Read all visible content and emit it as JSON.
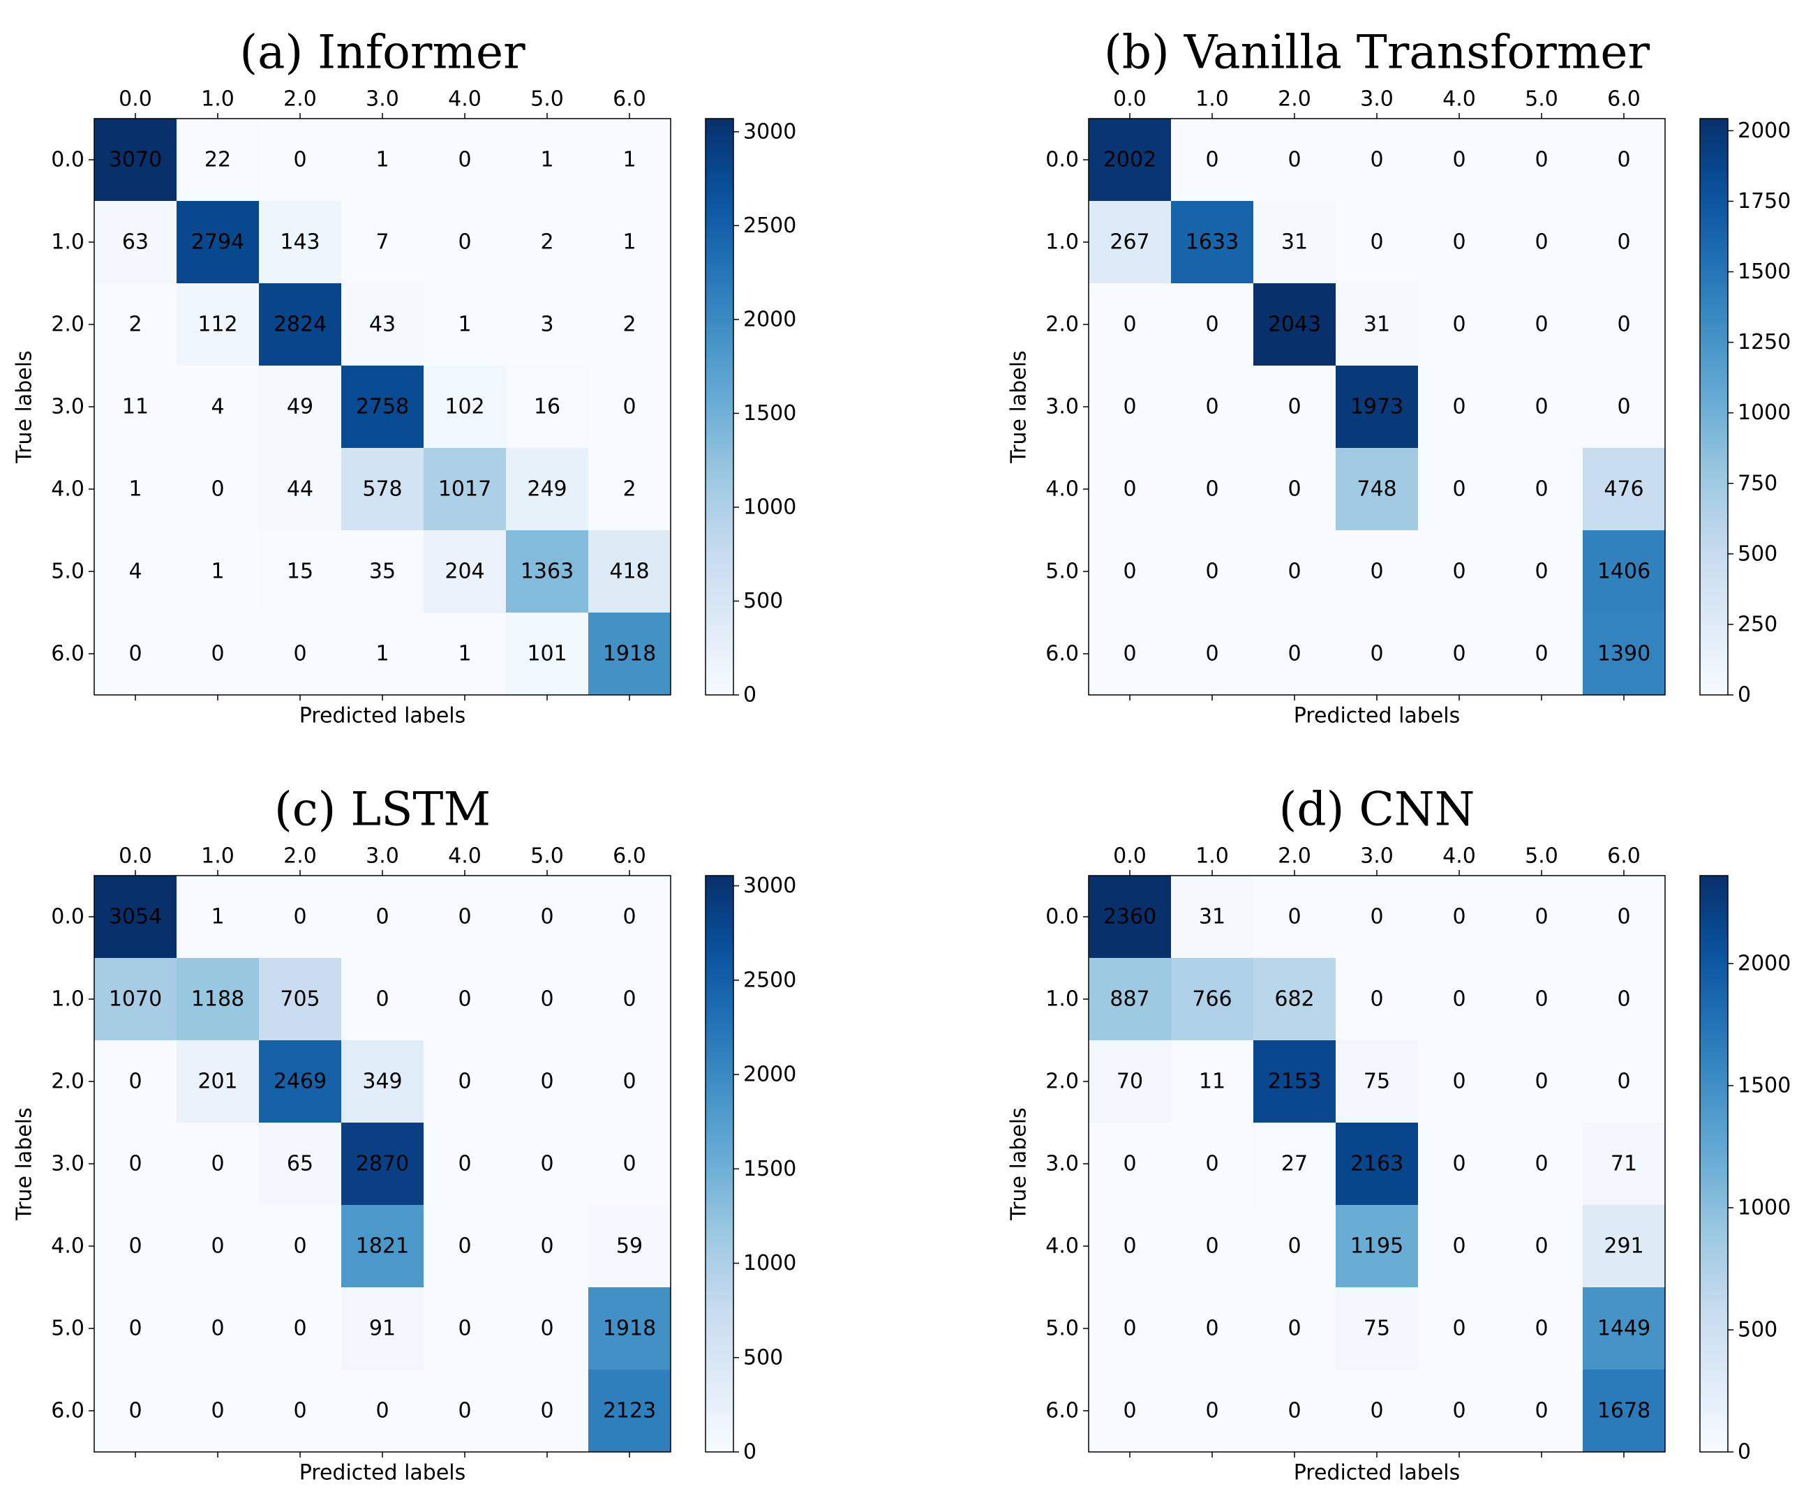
{
  "figure": {
    "title": ""
  },
  "colormap": {
    "name": "Blues",
    "stops": [
      "#f7fbff",
      "#deebf7",
      "#c6dbef",
      "#9ecae1",
      "#6baed6",
      "#4292c6",
      "#2171b5",
      "#08519c",
      "#08306b"
    ]
  },
  "chart_data": [
    {
      "type": "heatmap",
      "title": "(a) Informer",
      "xlabel": "Predicted labels",
      "ylabel": "True labels",
      "labels": [
        "0.0",
        "1.0",
        "2.0",
        "3.0",
        "4.0",
        "5.0",
        "6.0"
      ],
      "matrix": [
        [
          3070,
          22,
          0,
          1,
          0,
          1,
          1
        ],
        [
          63,
          2794,
          143,
          7,
          0,
          2,
          1
        ],
        [
          2,
          112,
          2824,
          43,
          1,
          3,
          2
        ],
        [
          11,
          4,
          49,
          2758,
          102,
          16,
          0
        ],
        [
          1,
          0,
          44,
          578,
          1017,
          249,
          2
        ],
        [
          4,
          1,
          15,
          35,
          204,
          1363,
          418
        ],
        [
          0,
          0,
          0,
          1,
          1,
          101,
          1918
        ]
      ],
      "vmin": 0,
      "vmax": 3070,
      "colorbar_ticks": [
        0,
        500,
        1000,
        1500,
        2000,
        2500,
        3000
      ]
    },
    {
      "type": "heatmap",
      "title": "(b) Vanilla Transformer",
      "xlabel": "Predicted labels",
      "ylabel": "True labels",
      "labels": [
        "0.0",
        "1.0",
        "2.0",
        "3.0",
        "4.0",
        "5.0",
        "6.0"
      ],
      "matrix": [
        [
          2002,
          0,
          0,
          0,
          0,
          0,
          0
        ],
        [
          267,
          1633,
          31,
          0,
          0,
          0,
          0
        ],
        [
          0,
          0,
          2043,
          31,
          0,
          0,
          0
        ],
        [
          0,
          0,
          0,
          1973,
          0,
          0,
          0
        ],
        [
          0,
          0,
          0,
          748,
          0,
          0,
          476
        ],
        [
          0,
          0,
          0,
          0,
          0,
          0,
          1406
        ],
        [
          0,
          0,
          0,
          0,
          0,
          0,
          1390
        ]
      ],
      "vmin": 0,
      "vmax": 2043,
      "colorbar_ticks": [
        0,
        250,
        500,
        750,
        1000,
        1250,
        1500,
        1750,
        2000
      ]
    },
    {
      "type": "heatmap",
      "title": "(c) LSTM",
      "xlabel": "Predicted labels",
      "ylabel": "True labels",
      "labels": [
        "0.0",
        "1.0",
        "2.0",
        "3.0",
        "4.0",
        "5.0",
        "6.0"
      ],
      "matrix": [
        [
          3054,
          1,
          0,
          0,
          0,
          0,
          0
        ],
        [
          1070,
          1188,
          705,
          0,
          0,
          0,
          0
        ],
        [
          0,
          201,
          2469,
          349,
          0,
          0,
          0
        ],
        [
          0,
          0,
          65,
          2870,
          0,
          0,
          0
        ],
        [
          0,
          0,
          0,
          1821,
          0,
          0,
          59
        ],
        [
          0,
          0,
          0,
          91,
          0,
          0,
          1918
        ],
        [
          0,
          0,
          0,
          0,
          0,
          0,
          2123
        ]
      ],
      "vmin": 0,
      "vmax": 3054,
      "colorbar_ticks": [
        0,
        500,
        1000,
        1500,
        2000,
        2500,
        3000
      ]
    },
    {
      "type": "heatmap",
      "title": "(d) CNN",
      "xlabel": "Predicted labels",
      "ylabel": "True labels",
      "labels": [
        "0.0",
        "1.0",
        "2.0",
        "3.0",
        "4.0",
        "5.0",
        "6.0"
      ],
      "matrix": [
        [
          2360,
          31,
          0,
          0,
          0,
          0,
          0
        ],
        [
          887,
          766,
          682,
          0,
          0,
          0,
          0
        ],
        [
          70,
          11,
          2153,
          75,
          0,
          0,
          0
        ],
        [
          0,
          0,
          27,
          2163,
          0,
          0,
          71
        ],
        [
          0,
          0,
          0,
          1195,
          0,
          0,
          291
        ],
        [
          0,
          0,
          0,
          75,
          0,
          0,
          1449
        ],
        [
          0,
          0,
          0,
          0,
          0,
          0,
          1678
        ]
      ],
      "vmin": 0,
      "vmax": 2360,
      "colorbar_ticks": [
        0,
        500,
        1000,
        1500,
        2000
      ]
    }
  ]
}
